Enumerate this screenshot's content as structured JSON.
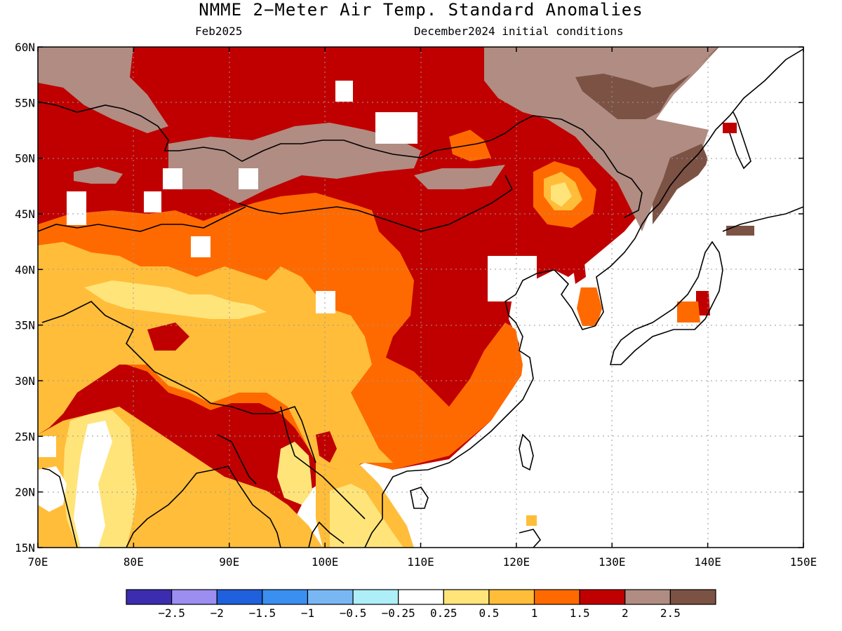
{
  "title": "NMME 2−Meter Air Temp. Standard Anomalies",
  "subtitle_left": "Feb2025",
  "subtitle_right": "December2024 initial conditions",
  "map": {
    "lon_range": [
      70,
      150
    ],
    "lat_range": [
      15,
      60
    ],
    "lon_ticks": [
      "70E",
      "80E",
      "90E",
      "100E",
      "110E",
      "120E",
      "130E",
      "140E",
      "150E"
    ],
    "lat_ticks": [
      "15N",
      "20N",
      "25N",
      "30N",
      "35N",
      "40N",
      "45N",
      "50N",
      "55N",
      "60N"
    ],
    "grid": true
  },
  "colorbar": {
    "colors": [
      "#3b2cb0",
      "#9b8ef0",
      "#1f60dc",
      "#3a8ff0",
      "#79b7f4",
      "#aeeef8",
      "#ffffff",
      "#ffe47a",
      "#ffbd3a",
      "#ff6a00",
      "#c00000",
      "#b08c82",
      "#7b5244"
    ],
    "labels": [
      "−2.5",
      "−2",
      "−1.5",
      "−1",
      "−0.5",
      "−0.25",
      "0.25",
      "0.5",
      "1",
      "1.5",
      "2",
      "2.5"
    ]
  },
  "colors": {
    "brown_light": "#b08c82",
    "brown_dark": "#7b5244",
    "red": "#c00000",
    "orange": "#ff6a00",
    "light_orange": "#ffbd3a",
    "yellow": "#ffe47a",
    "white": "#ffffff"
  }
}
